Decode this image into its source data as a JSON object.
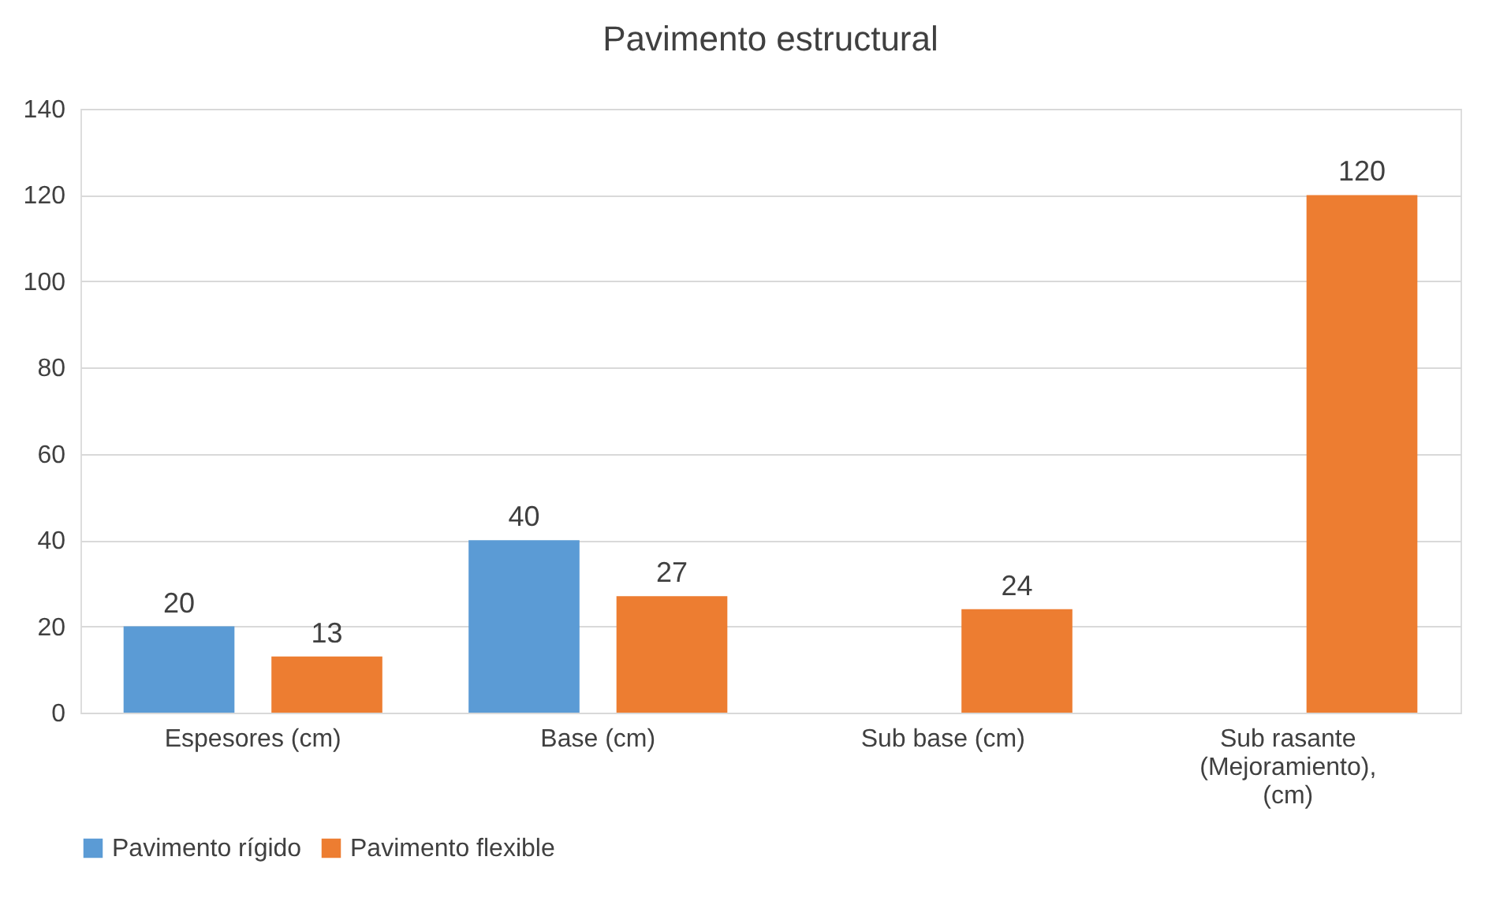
{
  "chart_data": {
    "type": "bar",
    "title": "Pavimento estructural",
    "categories": [
      "Espesores (cm)",
      "Base (cm)",
      "Sub base (cm)",
      "Sub rasante (Mejoramiento), (cm)"
    ],
    "series": [
      {
        "name": "Pavimento rígido",
        "color": "#5b9bd5",
        "values": [
          20,
          40,
          null,
          null
        ]
      },
      {
        "name": "Pavimento flexible",
        "color": "#ed7d31",
        "values": [
          13,
          27,
          24,
          120
        ]
      }
    ],
    "ylim": [
      0,
      140
    ],
    "yticks": [
      0,
      20,
      40,
      60,
      80,
      100,
      120,
      140
    ],
    "grid": "y",
    "legend": "bottom",
    "data_labels": true
  }
}
